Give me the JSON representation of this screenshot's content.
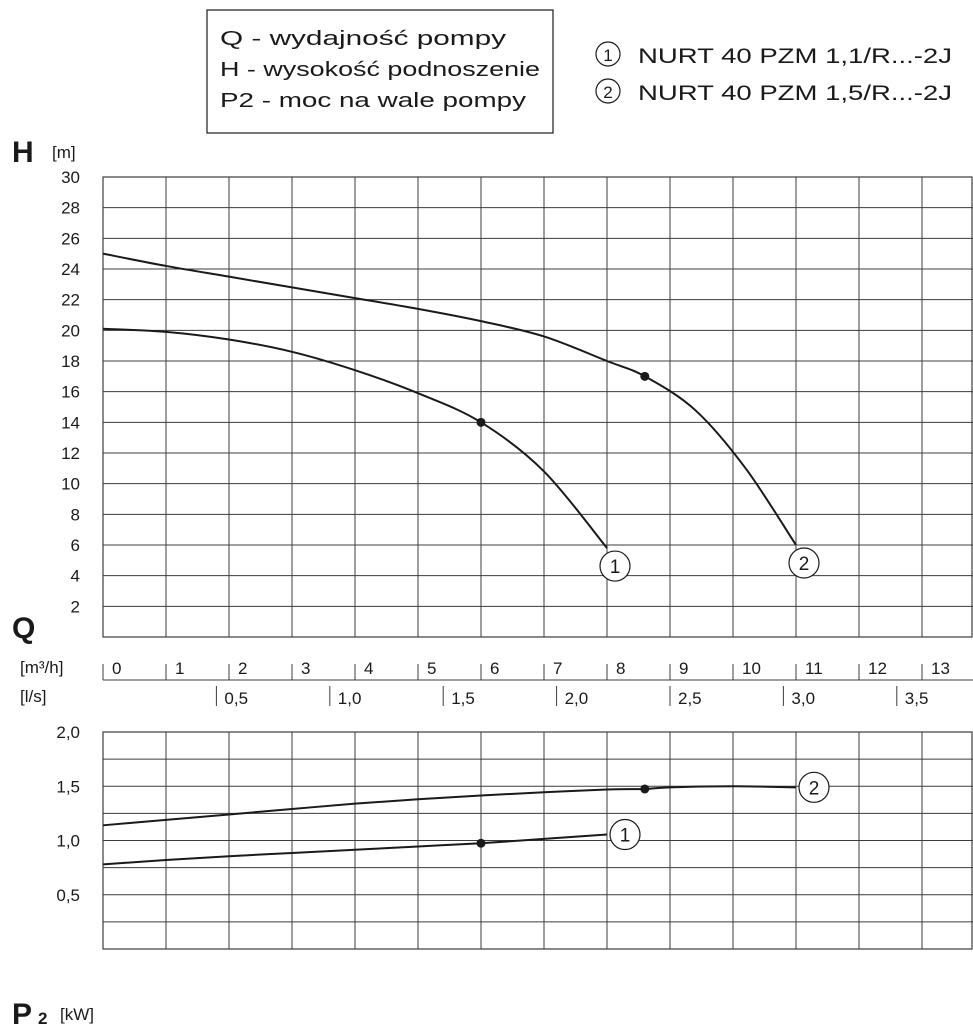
{
  "legend_box": [
    "Q - wydajność pompy",
    "H - wysokość podnoszenie",
    "P2 - moc na wale pompy"
  ],
  "models": [
    {
      "num": "1",
      "name": "NURT 40 PZM 1,1/R...-2J"
    },
    {
      "num": "2",
      "name": "NURT 40 PZM 1,5/R...-2J"
    }
  ],
  "chart_data": [
    {
      "type": "line",
      "y_symbol": "H",
      "y_unit": "[m]",
      "x_symbol": "Q",
      "ylim": [
        0,
        30
      ],
      "y_ticks": [
        "2",
        "4",
        "6",
        "8",
        "10",
        "12",
        "14",
        "16",
        "18",
        "20",
        "22",
        "24",
        "26",
        "28",
        "30"
      ],
      "xlim": [
        0,
        13.6
      ],
      "grid": true,
      "series": [
        {
          "name": "1",
          "points": [
            [
              0,
              20.1
            ],
            [
              1,
              19.9
            ],
            [
              2,
              19.4
            ],
            [
              3,
              18.6
            ],
            [
              4,
              17.4
            ],
            [
              5,
              15.9
            ],
            [
              6,
              14.0
            ],
            [
              7,
              10.8
            ],
            [
              8,
              5.8
            ]
          ],
          "marker": [
            6,
            14.0
          ]
        },
        {
          "name": "2",
          "points": [
            [
              0,
              25.0
            ],
            [
              1,
              24.2
            ],
            [
              2,
              23.5
            ],
            [
              3,
              22.8
            ],
            [
              4,
              22.1
            ],
            [
              5,
              21.4
            ],
            [
              6,
              20.6
            ],
            [
              7,
              19.6
            ],
            [
              8,
              18.0
            ],
            [
              8.6,
              17.0
            ],
            [
              9.4,
              14.8
            ],
            [
              10.2,
              11.0
            ],
            [
              11.0,
              6.0
            ]
          ],
          "marker": [
            8.6,
            17.0
          ]
        }
      ]
    },
    {
      "type": "line",
      "y_symbol": "P",
      "y_subscript": "2",
      "y_unit": "[kW]",
      "ylim": [
        0,
        2.0
      ],
      "y_ticks": [
        "0,5",
        "1,0",
        "1,5",
        "2,0"
      ],
      "xlim": [
        0,
        13.6
      ],
      "grid": true,
      "series": [
        {
          "name": "1",
          "points": [
            [
              0,
              0.78
            ],
            [
              1,
              0.82
            ],
            [
              2,
              0.855
            ],
            [
              3,
              0.885
            ],
            [
              4,
              0.915
            ],
            [
              5,
              0.945
            ],
            [
              6,
              0.975
            ],
            [
              7,
              1.015
            ],
            [
              8,
              1.055
            ]
          ],
          "marker": [
            6,
            0.975
          ]
        },
        {
          "name": "2",
          "points": [
            [
              0,
              1.14
            ],
            [
              1,
              1.19
            ],
            [
              2,
              1.24
            ],
            [
              3,
              1.29
            ],
            [
              4,
              1.34
            ],
            [
              5,
              1.38
            ],
            [
              6,
              1.415
            ],
            [
              7,
              1.445
            ],
            [
              8,
              1.47
            ],
            [
              8.6,
              1.475
            ],
            [
              9,
              1.49
            ],
            [
              10,
              1.5
            ],
            [
              11,
              1.49
            ]
          ],
          "marker": [
            8.6,
            1.475
          ]
        }
      ]
    }
  ],
  "q_axis": {
    "m3h_unit": "[m³/h]",
    "m3h_ticks": [
      "0",
      "1",
      "2",
      "3",
      "4",
      "5",
      "6",
      "7",
      "8",
      "9",
      "10",
      "11",
      "12",
      "13"
    ],
    "ls_unit": "[l/s]",
    "ls_ticks": [
      "0,5",
      "1,0",
      "1,5",
      "2,0",
      "2,5",
      "3,0",
      "3,5"
    ],
    "ls_values": [
      0.5,
      1.0,
      1.5,
      2.0,
      2.5,
      3.0,
      3.5
    ]
  }
}
